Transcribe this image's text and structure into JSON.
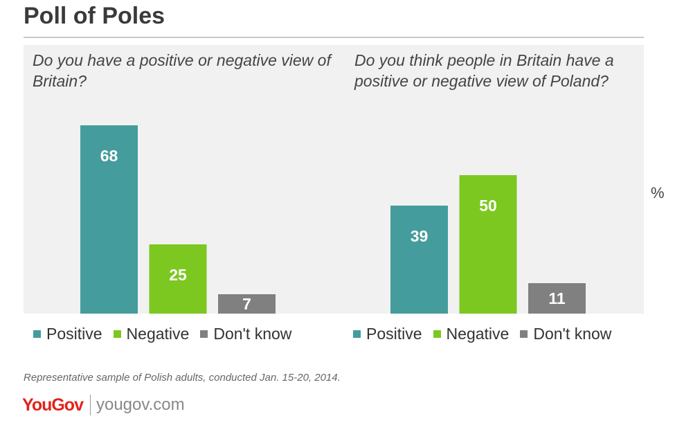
{
  "title": "Poll of Poles",
  "unit_label": "%",
  "footnote": "Representative sample of Polish adults, conducted Jan. 15-20, 2014.",
  "logo_text": "YouGov",
  "site_text": "yougov.com",
  "colors": {
    "positive": "#459c9c",
    "negative": "#7cc821",
    "dont_know": "#808080",
    "panel_background": "#f1f1f1",
    "logo": "#e2231a"
  },
  "chart_data": [
    {
      "type": "bar",
      "title": "Do you have a positive or negative view of Britain?",
      "categories": [
        "Positive",
        "Negative",
        "Don't know"
      ],
      "values": [
        68,
        25,
        7
      ],
      "ylim": [
        0,
        80
      ],
      "legend": [
        "Positive",
        "Negative",
        "Don't know"
      ]
    },
    {
      "type": "bar",
      "title": "Do you think people in Britain have a positive or negative view of Poland?",
      "categories": [
        "Positive",
        "Negative",
        "Don't know"
      ],
      "values": [
        39,
        50,
        11
      ],
      "ylim": [
        0,
        80
      ],
      "legend": [
        "Positive",
        "Negative",
        "Don't know"
      ]
    }
  ]
}
